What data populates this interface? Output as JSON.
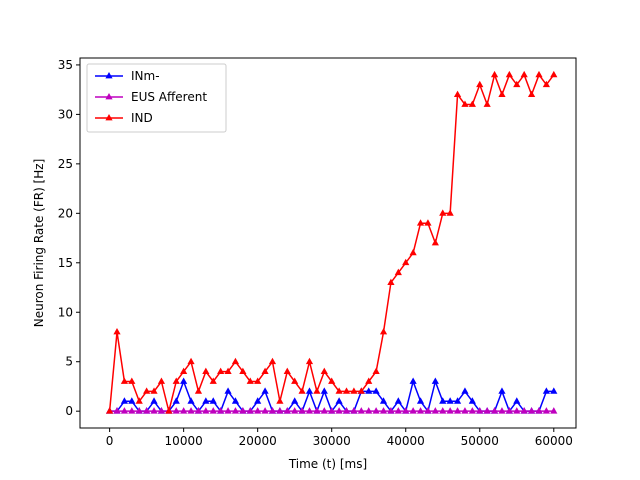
{
  "chart_data": {
    "type": "line",
    "title": "",
    "xlabel": "Time (t) [ms]",
    "ylabel": "Neuron Firing Rate (FR) [Hz]",
    "xlim": [
      -4000,
      63000
    ],
    "ylim": [
      -1.7,
      35.7
    ],
    "xticks": [
      0,
      10000,
      20000,
      30000,
      40000,
      50000,
      60000
    ],
    "yticks": [
      0,
      5,
      10,
      15,
      20,
      25,
      30,
      35
    ],
    "grid": false,
    "legend_position": "top-left",
    "marker": "triangle",
    "series": [
      {
        "name": "INm-",
        "color": "#0000ff",
        "x": [
          0,
          1000,
          2000,
          3000,
          4000,
          5000,
          6000,
          7000,
          8000,
          9000,
          10000,
          11000,
          12000,
          13000,
          14000,
          15000,
          16000,
          17000,
          18000,
          19000,
          20000,
          21000,
          22000,
          23000,
          24000,
          25000,
          26000,
          27000,
          28000,
          29000,
          30000,
          31000,
          32000,
          33000,
          34000,
          35000,
          36000,
          37000,
          38000,
          39000,
          40000,
          41000,
          42000,
          43000,
          44000,
          45000,
          46000,
          47000,
          48000,
          49000,
          50000,
          51000,
          52000,
          53000,
          54000,
          55000,
          56000,
          57000,
          58000,
          59000,
          60000
        ],
        "y": [
          0,
          0,
          1,
          1,
          0,
          0,
          1,
          0,
          0,
          1,
          3,
          1,
          0,
          1,
          1,
          0,
          2,
          1,
          0,
          0,
          1,
          2,
          0,
          0,
          0,
          1,
          0,
          2,
          0,
          2,
          0,
          1,
          0,
          0,
          2,
          2,
          2,
          1,
          0,
          1,
          0,
          3,
          1,
          0,
          3,
          1,
          1,
          1,
          2,
          1,
          0,
          0,
          0,
          2,
          0,
          1,
          0,
          0,
          0,
          2,
          2
        ]
      },
      {
        "name": "EUS Afferent",
        "color": "#bf00bf",
        "x": [
          0,
          1000,
          2000,
          3000,
          4000,
          5000,
          6000,
          7000,
          8000,
          9000,
          10000,
          11000,
          12000,
          13000,
          14000,
          15000,
          16000,
          17000,
          18000,
          19000,
          20000,
          21000,
          22000,
          23000,
          24000,
          25000,
          26000,
          27000,
          28000,
          29000,
          30000,
          31000,
          32000,
          33000,
          34000,
          35000,
          36000,
          37000,
          38000,
          39000,
          40000,
          41000,
          42000,
          43000,
          44000,
          45000,
          46000,
          47000,
          48000,
          49000,
          50000,
          51000,
          52000,
          53000,
          54000,
          55000,
          56000,
          57000,
          58000,
          59000,
          60000
        ],
        "y": [
          0,
          0,
          0,
          0,
          0,
          0,
          0,
          0,
          0,
          0,
          0,
          0,
          0,
          0,
          0,
          0,
          0,
          0,
          0,
          0,
          0,
          0,
          0,
          0,
          0,
          0,
          0,
          0,
          0,
          0,
          0,
          0,
          0,
          0,
          0,
          0,
          0,
          0,
          0,
          0,
          0,
          0,
          0,
          0,
          0,
          0,
          0,
          0,
          0,
          0,
          0,
          0,
          0,
          0,
          0,
          0,
          0,
          0,
          0,
          0,
          0
        ]
      },
      {
        "name": "IND",
        "color": "#ff0000",
        "x": [
          0,
          1000,
          2000,
          3000,
          4000,
          5000,
          6000,
          7000,
          8000,
          9000,
          10000,
          11000,
          12000,
          13000,
          14000,
          15000,
          16000,
          17000,
          18000,
          19000,
          20000,
          21000,
          22000,
          23000,
          24000,
          25000,
          26000,
          27000,
          28000,
          29000,
          30000,
          31000,
          32000,
          33000,
          34000,
          35000,
          36000,
          37000,
          38000,
          39000,
          40000,
          41000,
          42000,
          43000,
          44000,
          45000,
          46000,
          47000,
          48000,
          49000,
          50000,
          51000,
          52000,
          53000,
          54000,
          55000,
          56000,
          57000,
          58000,
          59000,
          60000
        ],
        "y": [
          0,
          8,
          3,
          3,
          1,
          2,
          2,
          3,
          0,
          3,
          4,
          5,
          2,
          4,
          3,
          4,
          4,
          5,
          4,
          3,
          3,
          4,
          5,
          1,
          4,
          3,
          2,
          5,
          2,
          4,
          3,
          2,
          2,
          2,
          2,
          3,
          4,
          8,
          13,
          14,
          15,
          16,
          19,
          19,
          17,
          20,
          20,
          32,
          31,
          31,
          33,
          31,
          34,
          32,
          34,
          33,
          34,
          32,
          34,
          33,
          34
        ]
      }
    ]
  }
}
